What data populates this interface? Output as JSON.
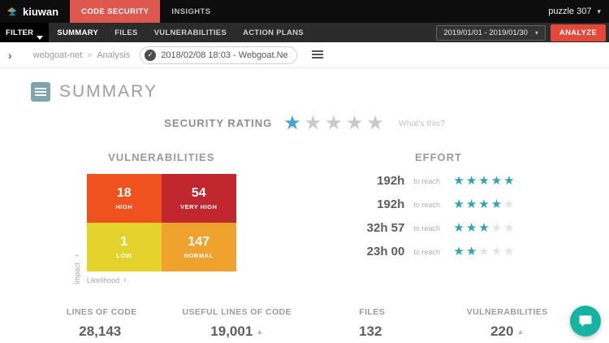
{
  "colors": {
    "top_tab_red": "#df5850",
    "analyze_red": "#e2493b",
    "rating_star_blue": "#4da3c7",
    "effort_star_teal": "#2fa3b3",
    "summary_icon_teal": "#7fa6af",
    "chat_teal": "#16b3a2"
  },
  "topbar": {
    "brand": "kiuwan",
    "tabs": [
      {
        "label": "CODE SECURITY",
        "active": true
      },
      {
        "label": "INSIGHTS",
        "active": false
      }
    ],
    "account": "puzzle 307"
  },
  "navbar": {
    "filter_label": "FILTER",
    "tabs": [
      {
        "label": "SUMMARY",
        "active": true
      },
      {
        "label": "FILES",
        "active": false
      },
      {
        "label": "VULNERABILITIES",
        "active": false
      },
      {
        "label": "ACTION PLANS",
        "active": false
      }
    ],
    "date_range": "2019/01/01 - 2019/01/30",
    "analyze_label": "ANALYZE"
  },
  "breadcrumb": {
    "project": "webgoat-net",
    "separator": "»",
    "section": "Analysis",
    "analysis": "2018/02/08 18:03 - Webgoat.Ne"
  },
  "summary": {
    "title": "SUMMARY",
    "security_rating": {
      "label": "SECURITY RATING",
      "stars_filled": 1,
      "stars_total": 5,
      "help_text": "What's this?"
    },
    "vulnerabilities": {
      "title": "VULNERABILITIES",
      "cells": [
        {
          "value": "18",
          "label": "HIGH",
          "color": "#f0521f"
        },
        {
          "value": "54",
          "label": "VERY HIGH",
          "color": "#c2262e"
        },
        {
          "value": "1",
          "label": "LOW",
          "color": "#e3d32c"
        },
        {
          "value": "147",
          "label": "NORMAL",
          "color": "#f0a22e"
        }
      ],
      "y_axis": "Impact",
      "x_axis": "Likelihood"
    },
    "effort": {
      "title": "EFFORT",
      "to_reach_label": "to reach",
      "rows": [
        {
          "hours": "192h",
          "stars": 5
        },
        {
          "hours": "192h",
          "stars": 4
        },
        {
          "hours": "32h 57",
          "stars": 3
        },
        {
          "hours": "23h 00",
          "stars": 2
        }
      ]
    },
    "stats": [
      {
        "label": "LINES OF CODE",
        "value": "28,143",
        "trend": ""
      },
      {
        "label": "USEFUL LINES OF CODE",
        "value": "19,001",
        "trend": "▲"
      },
      {
        "label": "FILES",
        "value": "132",
        "trend": ""
      },
      {
        "label": "VULNERABILITIES",
        "value": "220",
        "trend": "▲"
      }
    ]
  }
}
